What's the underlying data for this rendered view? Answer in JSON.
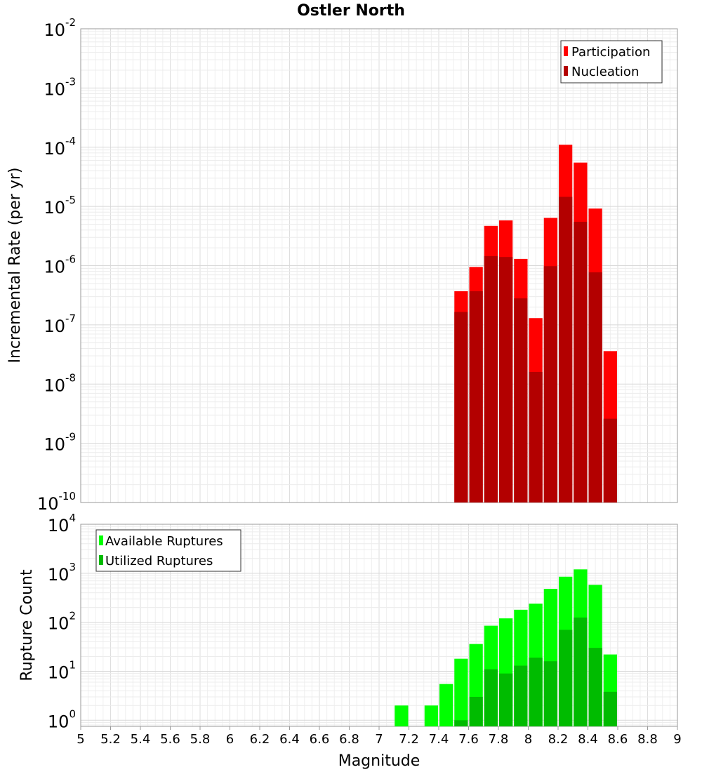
{
  "chart_data": [
    {
      "type": "bar",
      "title": "Ostler North",
      "ylabel": "Incremental Rate (per yr)",
      "xlabel": "",
      "xlim": [
        5,
        9
      ],
      "ylim": [
        1e-10,
        0.01
      ],
      "y_scale": "log",
      "grid": true,
      "legend_position": "top-right",
      "y_tick_exponents": [
        "-2",
        "-3",
        "-4",
        "-5",
        "-6",
        "-7",
        "-8",
        "-9",
        "-10"
      ],
      "x": [
        7.55,
        7.65,
        7.75,
        7.85,
        7.95,
        8.05,
        8.15,
        8.25,
        8.35,
        8.45,
        8.55
      ],
      "series": [
        {
          "name": "Participation",
          "color": "#ff0000",
          "values": [
            3.7e-07,
            9.5e-07,
            4.7e-06,
            5.8e-06,
            1.3e-06,
            1.3e-07,
            6.4e-06,
            0.00011,
            5.5e-05,
            9.2e-06,
            3.6e-08
          ]
        },
        {
          "name": "Nucleation",
          "color": "#b30000",
          "values": [
            1.65e-07,
            3.7e-07,
            1.45e-06,
            1.4e-06,
            2.8e-07,
            1.6e-08,
            9.8e-07,
            1.45e-05,
            5.5e-06,
            7.7e-07,
            2.6e-09
          ]
        }
      ]
    },
    {
      "type": "bar",
      "title": "",
      "ylabel": "Rupture Count",
      "xlabel": "Magnitude",
      "xlim": [
        5,
        9
      ],
      "ylim": [
        0.75,
        10000
      ],
      "y_scale": "log",
      "grid": true,
      "legend_position": "top-left",
      "y_tick_exponents": [
        "4",
        "3",
        "2",
        "1",
        "0"
      ],
      "x_tick_labels": [
        "5",
        "5.2",
        "5.4",
        "5.6",
        "5.8",
        "6",
        "6.2",
        "6.4",
        "6.6",
        "6.8",
        "7",
        "7.2",
        "7.4",
        "7.6",
        "7.8",
        "8",
        "8.2",
        "8.4",
        "8.6",
        "8.8",
        "9"
      ],
      "x": [
        7.15,
        7.35,
        7.45,
        7.55,
        7.65,
        7.75,
        7.85,
        7.95,
        8.05,
        8.15,
        8.25,
        8.35,
        8.45,
        8.55
      ],
      "series": [
        {
          "name": "Available Ruptures",
          "color": "#00ff00",
          "values": [
            2,
            2,
            5.5,
            18,
            36,
            85,
            120,
            180,
            240,
            480,
            850,
            1200,
            580,
            22
          ]
        },
        {
          "name": "Utilized Ruptures",
          "color": "#00bb00",
          "values": [
            0,
            0,
            0,
            1,
            3,
            11,
            9,
            13,
            19,
            16,
            70,
            125,
            30,
            3.8
          ]
        }
      ]
    }
  ]
}
